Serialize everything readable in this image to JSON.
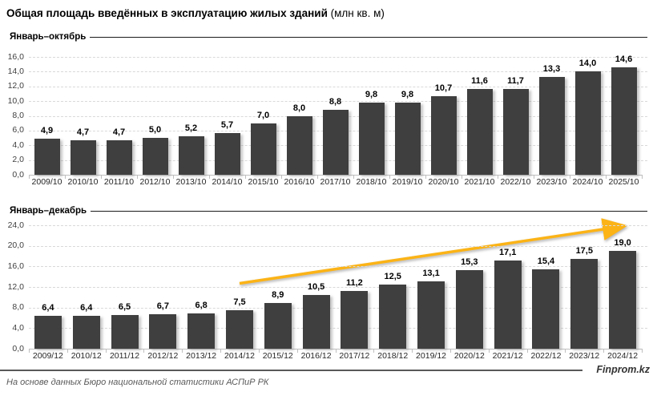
{
  "header": {
    "title_main": "Общая площадь введённых в эксплуатацию жилых зданий",
    "title_unit": " (млн кв. м)"
  },
  "footer": {
    "source": "На основе данных Бюро национальной статистики АСПиР РК",
    "brand": "Finprom.kz"
  },
  "colors": {
    "bar": "#3f3f3f",
    "arrow": "#fbb316",
    "gridline": "#d9d9d9",
    "axis_line": "#bfbfbf"
  },
  "chart_data": [
    {
      "type": "bar",
      "section_label": "Январь–октябрь",
      "categories": [
        "2009/10",
        "2010/10",
        "2011/10",
        "2012/10",
        "2013/10",
        "2014/10",
        "2015/10",
        "2016/10",
        "2017/10",
        "2018/10",
        "2019/10",
        "2020/10",
        "2021/10",
        "2022/10",
        "2023/10",
        "2024/10",
        "2025/10"
      ],
      "values": [
        4.9,
        4.7,
        4.7,
        5.0,
        5.2,
        5.7,
        7.0,
        8.0,
        8.8,
        9.8,
        9.8,
        10.7,
        11.6,
        11.7,
        13.3,
        14.0,
        14.6
      ],
      "value_labels": [
        "4,9",
        "4,7",
        "4,7",
        "5,0",
        "5,2",
        "5,7",
        "7,0",
        "8,0",
        "8,8",
        "9,8",
        "9,8",
        "10,7",
        "11,6",
        "11,7",
        "13,3",
        "14,0",
        "14,6"
      ],
      "ylim": [
        0,
        16
      ],
      "ytick_step": 2,
      "ytick_labels": [
        "0,0",
        "2,0",
        "4,0",
        "6,0",
        "8,0",
        "10,0",
        "12,0",
        "14,0",
        "16,0"
      ],
      "grid": true,
      "legend": false
    },
    {
      "type": "bar",
      "section_label": "Январь–декабрь",
      "categories": [
        "2009/12",
        "2010/12",
        "2011/12",
        "2012/12",
        "2013/12",
        "2014/12",
        "2015/12",
        "2016/12",
        "2017/12",
        "2018/12",
        "2019/12",
        "2020/12",
        "2021/12",
        "2022/12",
        "2023/12",
        "2024/12"
      ],
      "values": [
        6.4,
        6.4,
        6.5,
        6.7,
        6.8,
        7.5,
        8.9,
        10.5,
        11.2,
        12.5,
        13.1,
        15.3,
        17.1,
        15.4,
        17.5,
        19.0
      ],
      "value_labels": [
        "6,4",
        "6,4",
        "6,5",
        "6,7",
        "6,8",
        "7,5",
        "8,9",
        "10,5",
        "11,2",
        "12,5",
        "13,1",
        "15,3",
        "17,1",
        "15,4",
        "17,5",
        "19,0"
      ],
      "ylim": [
        0,
        24
      ],
      "ytick_step": 4,
      "ytick_labels": [
        "0,0",
        "4,0",
        "8,0",
        "12,0",
        "16,0",
        "20,0",
        "24,0"
      ],
      "grid": true,
      "legend": false,
      "annotation": {
        "type": "trend-arrow",
        "color": "#fbb316",
        "from": {
          "category": "2014/12",
          "value": 12.7
        },
        "to": {
          "category": "2024/12",
          "value": 23.7
        }
      }
    }
  ]
}
